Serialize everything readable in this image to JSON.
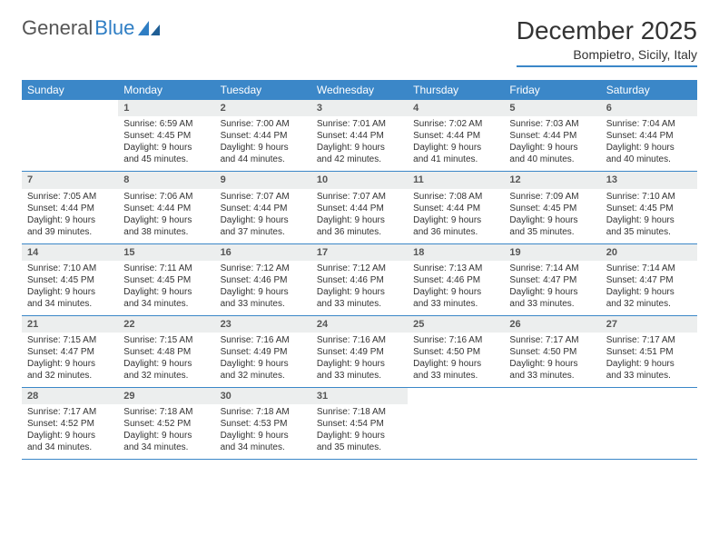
{
  "logo": {
    "text1": "General",
    "text2": "Blue"
  },
  "title": {
    "month": "December 2025",
    "location": "Bompietro, Sicily, Italy"
  },
  "colors": {
    "accent": "#3b87c8",
    "numbg": "#eceeee",
    "text": "#333333"
  },
  "dayNames": [
    "Sunday",
    "Monday",
    "Tuesday",
    "Wednesday",
    "Thursday",
    "Friday",
    "Saturday"
  ],
  "labels": {
    "sunrise": "Sunrise:",
    "sunset": "Sunset:",
    "daylight": "Daylight:"
  },
  "firstDayOffset": 1,
  "days": [
    {
      "n": 1,
      "sunrise": "6:59 AM",
      "sunset": "4:45 PM",
      "daylight": "9 hours and 45 minutes."
    },
    {
      "n": 2,
      "sunrise": "7:00 AM",
      "sunset": "4:44 PM",
      "daylight": "9 hours and 44 minutes."
    },
    {
      "n": 3,
      "sunrise": "7:01 AM",
      "sunset": "4:44 PM",
      "daylight": "9 hours and 42 minutes."
    },
    {
      "n": 4,
      "sunrise": "7:02 AM",
      "sunset": "4:44 PM",
      "daylight": "9 hours and 41 minutes."
    },
    {
      "n": 5,
      "sunrise": "7:03 AM",
      "sunset": "4:44 PM",
      "daylight": "9 hours and 40 minutes."
    },
    {
      "n": 6,
      "sunrise": "7:04 AM",
      "sunset": "4:44 PM",
      "daylight": "9 hours and 40 minutes."
    },
    {
      "n": 7,
      "sunrise": "7:05 AM",
      "sunset": "4:44 PM",
      "daylight": "9 hours and 39 minutes."
    },
    {
      "n": 8,
      "sunrise": "7:06 AM",
      "sunset": "4:44 PM",
      "daylight": "9 hours and 38 minutes."
    },
    {
      "n": 9,
      "sunrise": "7:07 AM",
      "sunset": "4:44 PM",
      "daylight": "9 hours and 37 minutes."
    },
    {
      "n": 10,
      "sunrise": "7:07 AM",
      "sunset": "4:44 PM",
      "daylight": "9 hours and 36 minutes."
    },
    {
      "n": 11,
      "sunrise": "7:08 AM",
      "sunset": "4:44 PM",
      "daylight": "9 hours and 36 minutes."
    },
    {
      "n": 12,
      "sunrise": "7:09 AM",
      "sunset": "4:45 PM",
      "daylight": "9 hours and 35 minutes."
    },
    {
      "n": 13,
      "sunrise": "7:10 AM",
      "sunset": "4:45 PM",
      "daylight": "9 hours and 35 minutes."
    },
    {
      "n": 14,
      "sunrise": "7:10 AM",
      "sunset": "4:45 PM",
      "daylight": "9 hours and 34 minutes."
    },
    {
      "n": 15,
      "sunrise": "7:11 AM",
      "sunset": "4:45 PM",
      "daylight": "9 hours and 34 minutes."
    },
    {
      "n": 16,
      "sunrise": "7:12 AM",
      "sunset": "4:46 PM",
      "daylight": "9 hours and 33 minutes."
    },
    {
      "n": 17,
      "sunrise": "7:12 AM",
      "sunset": "4:46 PM",
      "daylight": "9 hours and 33 minutes."
    },
    {
      "n": 18,
      "sunrise": "7:13 AM",
      "sunset": "4:46 PM",
      "daylight": "9 hours and 33 minutes."
    },
    {
      "n": 19,
      "sunrise": "7:14 AM",
      "sunset": "4:47 PM",
      "daylight": "9 hours and 33 minutes."
    },
    {
      "n": 20,
      "sunrise": "7:14 AM",
      "sunset": "4:47 PM",
      "daylight": "9 hours and 32 minutes."
    },
    {
      "n": 21,
      "sunrise": "7:15 AM",
      "sunset": "4:47 PM",
      "daylight": "9 hours and 32 minutes."
    },
    {
      "n": 22,
      "sunrise": "7:15 AM",
      "sunset": "4:48 PM",
      "daylight": "9 hours and 32 minutes."
    },
    {
      "n": 23,
      "sunrise": "7:16 AM",
      "sunset": "4:49 PM",
      "daylight": "9 hours and 32 minutes."
    },
    {
      "n": 24,
      "sunrise": "7:16 AM",
      "sunset": "4:49 PM",
      "daylight": "9 hours and 33 minutes."
    },
    {
      "n": 25,
      "sunrise": "7:16 AM",
      "sunset": "4:50 PM",
      "daylight": "9 hours and 33 minutes."
    },
    {
      "n": 26,
      "sunrise": "7:17 AM",
      "sunset": "4:50 PM",
      "daylight": "9 hours and 33 minutes."
    },
    {
      "n": 27,
      "sunrise": "7:17 AM",
      "sunset": "4:51 PM",
      "daylight": "9 hours and 33 minutes."
    },
    {
      "n": 28,
      "sunrise": "7:17 AM",
      "sunset": "4:52 PM",
      "daylight": "9 hours and 34 minutes."
    },
    {
      "n": 29,
      "sunrise": "7:18 AM",
      "sunset": "4:52 PM",
      "daylight": "9 hours and 34 minutes."
    },
    {
      "n": 30,
      "sunrise": "7:18 AM",
      "sunset": "4:53 PM",
      "daylight": "9 hours and 34 minutes."
    },
    {
      "n": 31,
      "sunrise": "7:18 AM",
      "sunset": "4:54 PM",
      "daylight": "9 hours and 35 minutes."
    }
  ]
}
